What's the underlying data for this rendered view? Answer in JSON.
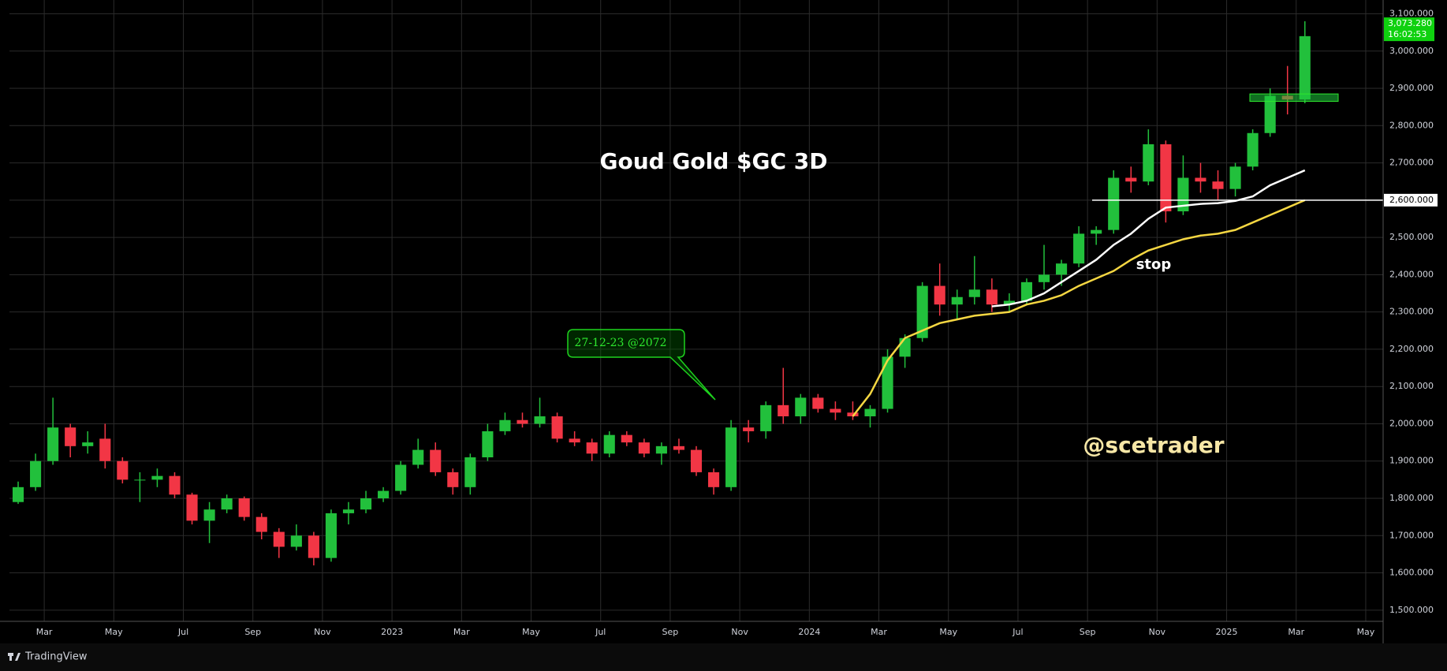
{
  "chart_data": {
    "type": "candlestick",
    "title": "Goud Gold $GC 3D",
    "annotations": {
      "callout": "27-12-23 @2072",
      "stop": "stop",
      "author": "@scetrader"
    },
    "open": [
      1790,
      1830,
      1900,
      1990,
      1940,
      1960,
      1900,
      1850,
      1850,
      1860,
      1810,
      1740,
      1770,
      1800,
      1750,
      1710,
      1670,
      1700,
      1640,
      1760,
      1770,
      1800,
      1820,
      1890,
      1930,
      1870,
      1830,
      1910,
      1980,
      2010,
      2000,
      2020,
      1960,
      1950,
      1920,
      1970,
      1950,
      1920,
      1940,
      1930,
      1870,
      1830,
      1990,
      1980,
      2050,
      2020,
      2070,
      2040,
      2030,
      2020,
      2040,
      2180,
      2230,
      2370,
      2320,
      2340,
      2360,
      2320,
      2330,
      2380,
      2400,
      2430,
      2510,
      2520,
      2660,
      2650,
      2750,
      2570,
      2660,
      2650,
      2630,
      2690,
      2780,
      2880,
      2870
    ],
    "high": [
      1845,
      1920,
      2070,
      2000,
      1980,
      2000,
      1910,
      1870,
      1880,
      1870,
      1815,
      1790,
      1810,
      1805,
      1760,
      1720,
      1730,
      1710,
      1770,
      1790,
      1820,
      1830,
      1900,
      1960,
      1950,
      1880,
      1920,
      2000,
      2030,
      2030,
      2070,
      2030,
      1980,
      1960,
      1980,
      1980,
      1960,
      1950,
      1960,
      1940,
      1880,
      2010,
      2010,
      2060,
      2150,
      2080,
      2080,
      2060,
      2060,
      2050,
      2200,
      2240,
      2380,
      2430,
      2360,
      2450,
      2390,
      2350,
      2390,
      2480,
      2440,
      2530,
      2530,
      2680,
      2690,
      2790,
      2760,
      2720,
      2700,
      2680,
      2700,
      2790,
      2900,
      2960,
      3080
    ],
    "low": [
      1785,
      1820,
      1890,
      1910,
      1920,
      1880,
      1840,
      1790,
      1830,
      1800,
      1730,
      1680,
      1760,
      1740,
      1690,
      1640,
      1660,
      1620,
      1630,
      1730,
      1760,
      1790,
      1810,
      1880,
      1860,
      1810,
      1810,
      1900,
      1970,
      1990,
      1990,
      1950,
      1940,
      1900,
      1910,
      1940,
      1910,
      1890,
      1920,
      1860,
      1810,
      1820,
      1950,
      1960,
      2000,
      2000,
      2030,
      2010,
      2010,
      1990,
      2030,
      2150,
      2220,
      2290,
      2280,
      2320,
      2300,
      2300,
      2320,
      2360,
      2370,
      2420,
      2480,
      2510,
      2620,
      2640,
      2540,
      2560,
      2620,
      2600,
      2610,
      2680,
      2770,
      2830,
      2860
    ],
    "close": [
      1830,
      1900,
      1990,
      1940,
      1950,
      1900,
      1850,
      1850,
      1860,
      1810,
      1740,
      1770,
      1800,
      1750,
      1710,
      1670,
      1700,
      1640,
      1760,
      1770,
      1800,
      1820,
      1890,
      1930,
      1870,
      1830,
      1910,
      1980,
      2010,
      2000,
      2020,
      1960,
      1950,
      1920,
      1970,
      1950,
      1920,
      1940,
      1930,
      1870,
      1830,
      1990,
      1980,
      2050,
      2020,
      2070,
      2040,
      2030,
      2020,
      2040,
      2180,
      2230,
      2370,
      2320,
      2340,
      2360,
      2320,
      2330,
      2380,
      2400,
      2430,
      2510,
      2520,
      2660,
      2650,
      2750,
      2570,
      2660,
      2650,
      2630,
      2690,
      2780,
      2880,
      2870,
      3040
    ],
    "up_color": "#22c03c",
    "down_color": "#f23645",
    "lines": [
      {
        "color": "#ffffff",
        "values": [
          null,
          null,
          null,
          null,
          null,
          null,
          null,
          null,
          null,
          null,
          null,
          null,
          null,
          null,
          null,
          null,
          null,
          null,
          null,
          null,
          null,
          null,
          null,
          null,
          null,
          null,
          null,
          null,
          null,
          null,
          null,
          null,
          null,
          null,
          null,
          null,
          null,
          null,
          null,
          null,
          null,
          null,
          null,
          null,
          null,
          null,
          null,
          null,
          null,
          null,
          null,
          null,
          null,
          null,
          null,
          null,
          2315,
          2320,
          2330,
          2350,
          2380,
          2410,
          2440,
          2480,
          2510,
          2550,
          2580,
          2585,
          2590,
          2592,
          2598,
          2610,
          2640,
          2660,
          2680
        ]
      },
      {
        "color": "#f5d742",
        "values": [
          null,
          null,
          null,
          null,
          null,
          null,
          null,
          null,
          null,
          null,
          null,
          null,
          null,
          null,
          null,
          null,
          null,
          null,
          null,
          null,
          null,
          null,
          null,
          null,
          null,
          null,
          null,
          null,
          null,
          null,
          null,
          null,
          null,
          null,
          null,
          null,
          null,
          null,
          null,
          null,
          null,
          null,
          null,
          null,
          null,
          null,
          null,
          null,
          2020,
          2080,
          2170,
          2230,
          2250,
          2270,
          2280,
          2290,
          2295,
          2300,
          2320,
          2330,
          2345,
          2370,
          2390,
          2410,
          2440,
          2465,
          2480,
          2495,
          2505,
          2510,
          2520,
          2540,
          2560,
          2580,
          2600
        ]
      }
    ],
    "hline": {
      "value": 2600,
      "label": "2,600.000"
    },
    "zone": {
      "low": 2865,
      "high": 2885
    },
    "last_price": {
      "value": 3073.28,
      "label": "3,073.280",
      "time": "16:02:53"
    },
    "xlim": [
      -0.5,
      78.5
    ],
    "xticks": [
      {
        "value": 1.5,
        "label": "Mar"
      },
      {
        "value": 5.5,
        "label": "May"
      },
      {
        "value": 9.5,
        "label": "Jul"
      },
      {
        "value": 13.5,
        "label": "Sep"
      },
      {
        "value": 17.5,
        "label": "Nov"
      },
      {
        "value": 21.5,
        "label": "2023"
      },
      {
        "value": 25.5,
        "label": "Mar"
      },
      {
        "value": 29.5,
        "label": "May"
      },
      {
        "value": 33.5,
        "label": "Jul"
      },
      {
        "value": 37.5,
        "label": "Sep"
      },
      {
        "value": 41.5,
        "label": "Nov"
      },
      {
        "value": 45.5,
        "label": "2024"
      },
      {
        "value": 49.5,
        "label": "Mar"
      },
      {
        "value": 53.5,
        "label": "May"
      },
      {
        "value": 57.5,
        "label": "Jul"
      },
      {
        "value": 61.5,
        "label": "Sep"
      },
      {
        "value": 65.5,
        "label": "Nov"
      },
      {
        "value": 69.5,
        "label": "2025"
      },
      {
        "value": 73.5,
        "label": "Mar"
      },
      {
        "value": 77.5,
        "label": "May"
      }
    ],
    "ylim": [
      1470,
      3137
    ],
    "yticks": [
      {
        "value": 1500,
        "label": "1,500.000"
      },
      {
        "value": 1600,
        "label": "1,600.000"
      },
      {
        "value": 1700,
        "label": "1,700.000"
      },
      {
        "value": 1800,
        "label": "1,800.000"
      },
      {
        "value": 1900,
        "label": "1,900.000"
      },
      {
        "value": 2000,
        "label": "2,000.000"
      },
      {
        "value": 2100,
        "label": "2,100.000"
      },
      {
        "value": 2200,
        "label": "2,200.000"
      },
      {
        "value": 2300,
        "label": "2,300.000"
      },
      {
        "value": 2400,
        "label": "2,400.000"
      },
      {
        "value": 2500,
        "label": "2,500.000"
      },
      {
        "value": 2600,
        "label": "2,600.000"
      },
      {
        "value": 2700,
        "label": "2,700.000"
      },
      {
        "value": 2800,
        "label": "2,800.000"
      },
      {
        "value": 2900,
        "label": "2,900.000"
      },
      {
        "value": 3000,
        "label": "3,000.000"
      },
      {
        "value": 3100,
        "label": "3,100.000"
      }
    ],
    "grid": true
  },
  "footer": {
    "brand": "TradingView"
  }
}
